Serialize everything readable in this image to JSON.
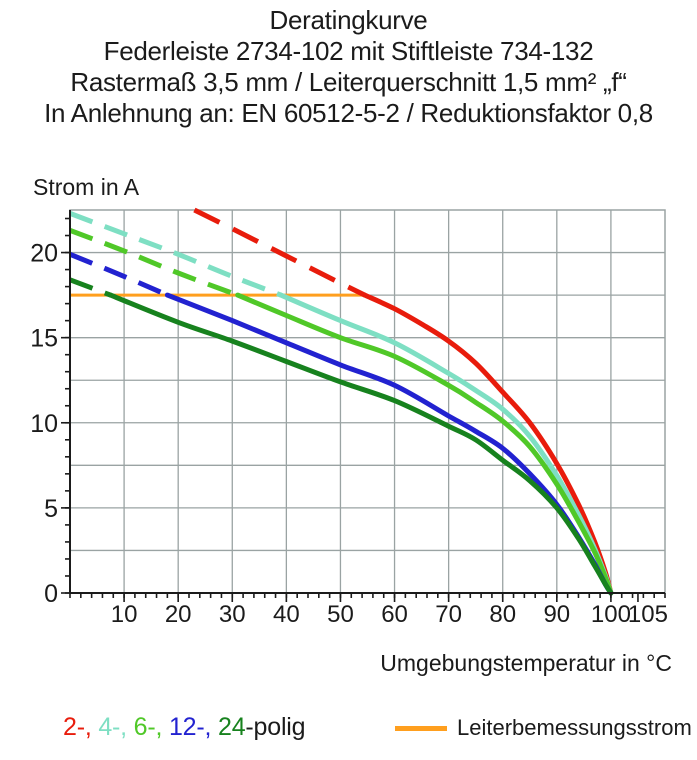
{
  "title": {
    "lines": [
      "Deratingkurve",
      "Federleiste 2734-102 mit Stiftleiste 734-132",
      "Rastermaß 3,5 mm / Leiterquerschnitt 1,5 mm² „f“",
      "In Anlehnung an: EN 60512-5-2 / Reduktionsfaktor 0,8"
    ]
  },
  "chart_data": {
    "type": "line",
    "title": "Deratingkurve",
    "xlabel": "Umgebungstemperatur in °C",
    "ylabel": "Strom in A",
    "xlim": [
      0,
      110
    ],
    "ylim": [
      0,
      22.5
    ],
    "grid": true,
    "x_grid_step": 10,
    "y_grid_step": 2.5,
    "x_minor_tick_step": 2,
    "y_minor_tick_step": 1,
    "x_tick_values": [
      10,
      20,
      30,
      40,
      50,
      60,
      70,
      80,
      90,
      100,
      105
    ],
    "x_tick_labels": [
      "10",
      "20",
      "30",
      "40",
      "50",
      "60",
      "70",
      "80",
      "90",
      "100",
      "105"
    ],
    "y_tick_values": [
      0,
      5,
      10,
      15,
      20
    ],
    "y_tick_labels": [
      "0",
      "5",
      "10",
      "15",
      "20"
    ],
    "grid_color": "#9aa3a3",
    "axis_color": "#1b1b1b",
    "rated_current": {
      "label": "Leiterbemessungsstrom",
      "value_a": 17.5,
      "x_start": 0,
      "x_end": 54.5,
      "color": "#ff9f1e"
    },
    "series": [
      {
        "name": "2-polig",
        "color": "#e81c0c",
        "dash_until_x": 54.5,
        "dash_pattern": [
          28,
          15
        ],
        "points": [
          [
            23,
            22.5
          ],
          [
            30,
            21.4
          ],
          [
            40,
            19.8
          ],
          [
            50,
            18.2
          ],
          [
            54.5,
            17.5
          ],
          [
            60,
            16.7
          ],
          [
            65,
            15.8
          ],
          [
            70,
            14.8
          ],
          [
            75,
            13.5
          ],
          [
            80,
            11.8
          ],
          [
            85,
            10.0
          ],
          [
            90,
            7.6
          ],
          [
            94,
            5.2
          ],
          [
            97,
            3.0
          ],
          [
            99,
            1.2
          ],
          [
            100,
            0
          ]
        ]
      },
      {
        "name": "4-polig",
        "color": "#7edfc3",
        "dash_until_x": 39,
        "dash_pattern": [
          24,
          13
        ],
        "points": [
          [
            0,
            22.3
          ],
          [
            10,
            21.1
          ],
          [
            20,
            19.9
          ],
          [
            30,
            18.6
          ],
          [
            39,
            17.5
          ],
          [
            50,
            16.0
          ],
          [
            60,
            14.7
          ],
          [
            70,
            12.9
          ],
          [
            75,
            11.9
          ],
          [
            80,
            10.8
          ],
          [
            85,
            9.2
          ],
          [
            90,
            6.9
          ],
          [
            94,
            4.6
          ],
          [
            97,
            2.6
          ],
          [
            99,
            1.0
          ],
          [
            100,
            0
          ]
        ]
      },
      {
        "name": "6-polig",
        "color": "#50c828",
        "dash_until_x": 31,
        "dash_pattern": [
          24,
          13
        ],
        "points": [
          [
            0,
            21.3
          ],
          [
            10,
            20.1
          ],
          [
            20,
            18.8
          ],
          [
            31,
            17.5
          ],
          [
            40,
            16.3
          ],
          [
            50,
            15.0
          ],
          [
            60,
            13.9
          ],
          [
            70,
            12.2
          ],
          [
            75,
            11.2
          ],
          [
            80,
            10.1
          ],
          [
            85,
            8.6
          ],
          [
            90,
            6.4
          ],
          [
            94,
            4.2
          ],
          [
            97,
            2.4
          ],
          [
            99,
            0.9
          ],
          [
            100,
            0
          ]
        ]
      },
      {
        "name": "12-polig",
        "color": "#2222d0",
        "dash_until_x": 18,
        "dash_pattern": [
          24,
          13
        ],
        "points": [
          [
            0,
            19.9
          ],
          [
            10,
            18.6
          ],
          [
            18,
            17.5
          ],
          [
            30,
            16.0
          ],
          [
            40,
            14.7
          ],
          [
            50,
            13.4
          ],
          [
            60,
            12.2
          ],
          [
            70,
            10.4
          ],
          [
            75,
            9.5
          ],
          [
            80,
            8.5
          ],
          [
            85,
            7.0
          ],
          [
            90,
            5.2
          ],
          [
            94,
            3.3
          ],
          [
            97,
            1.7
          ],
          [
            99,
            0.5
          ],
          [
            100,
            0
          ]
        ]
      },
      {
        "name": "24-polig",
        "color": "#17821e",
        "dash_until_x": 7.5,
        "dash_pattern": [
          24,
          13
        ],
        "points": [
          [
            0,
            18.4
          ],
          [
            7.5,
            17.5
          ],
          [
            20,
            15.9
          ],
          [
            30,
            14.8
          ],
          [
            40,
            13.6
          ],
          [
            50,
            12.4
          ],
          [
            60,
            11.3
          ],
          [
            70,
            9.8
          ],
          [
            75,
            9.0
          ],
          [
            80,
            7.8
          ],
          [
            85,
            6.6
          ],
          [
            90,
            5.0
          ],
          [
            94,
            3.2
          ],
          [
            97,
            1.6
          ],
          [
            99,
            0.5
          ],
          [
            100,
            0
          ]
        ]
      }
    ],
    "legend_position": "bottom"
  },
  "legend": {
    "poles": {
      "parts": [
        {
          "text": "2-,",
          "color": "#e81c0c"
        },
        {
          "text": " 4-,",
          "color": "#7edfc3"
        },
        {
          "text": " 6-,",
          "color": "#50c828"
        },
        {
          "text": " 12-,",
          "color": "#2222d0"
        },
        {
          "text": " 24",
          "color": "#17821e"
        },
        {
          "text": "-polig",
          "color": "#1b1b1b"
        }
      ]
    },
    "rated_current_label": "Leiterbemessungsstrom"
  }
}
